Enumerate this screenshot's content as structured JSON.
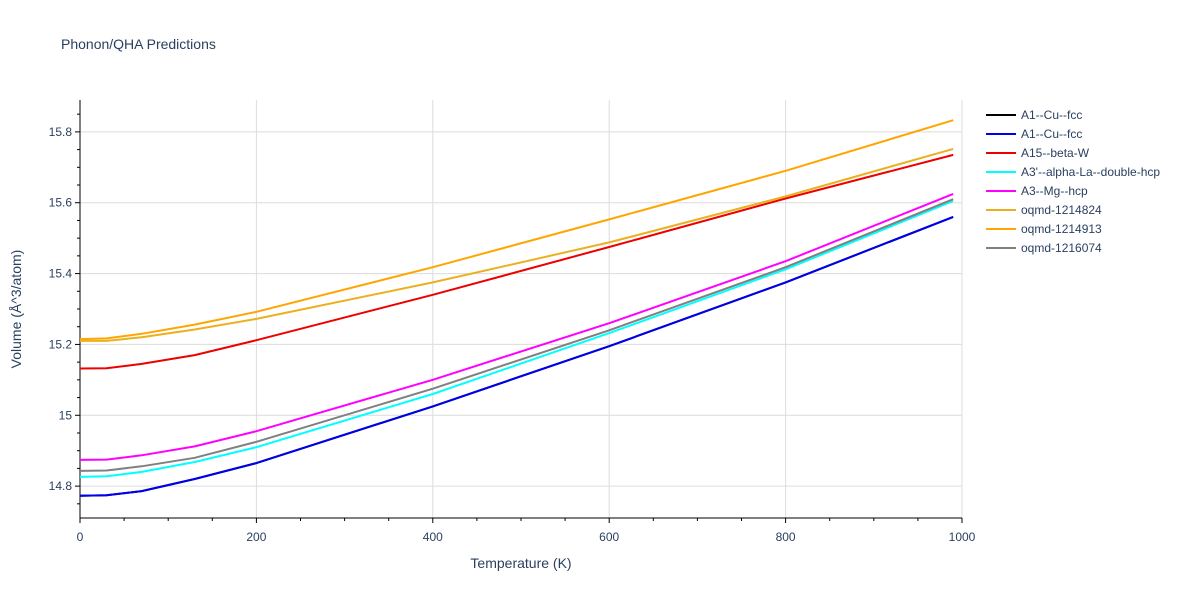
{
  "chart_data": {
    "type": "line",
    "title": "Phonon/QHA Predictions",
    "xlabel": "Temperature (K)",
    "ylabel": "Volume (Å^3/atom)",
    "xlim": [
      0,
      1000
    ],
    "ylim": [
      14.71,
      15.89
    ],
    "x_ticks": [
      0,
      200,
      400,
      600,
      800,
      1000
    ],
    "x_tick_labels": [
      "0",
      "200",
      "400",
      "600",
      "800",
      "1000"
    ],
    "y_ticks": [
      14.8,
      15.0,
      15.2,
      15.4,
      15.6,
      15.8
    ],
    "y_tick_labels": [
      "14.8",
      "15",
      "15.2",
      "15.4",
      "15.6",
      "15.8"
    ],
    "grid": true,
    "legend_position": "right",
    "x": [
      0,
      30,
      70,
      130,
      200,
      400,
      600,
      800,
      990
    ],
    "series": [
      {
        "name": "A1--Cu--fcc",
        "color": "#000000",
        "values": [
          14.773,
          14.774,
          14.786,
          14.82,
          14.865,
          15.025,
          15.195,
          15.375,
          15.56
        ]
      },
      {
        "name": "A1--Cu--fcc",
        "color": "#0000ee",
        "values": [
          14.773,
          14.774,
          14.786,
          14.82,
          14.865,
          15.025,
          15.195,
          15.375,
          15.56
        ]
      },
      {
        "name": "A15--beta-W",
        "color": "#ee0000",
        "values": [
          15.132,
          15.133,
          15.145,
          15.17,
          15.212,
          15.34,
          15.475,
          15.612,
          15.735
        ]
      },
      {
        "name": "A3'--alpha-La--double-hcp",
        "color": "#00ffff",
        "values": [
          14.826,
          14.828,
          14.84,
          14.868,
          14.91,
          15.06,
          15.232,
          15.412,
          15.605
        ]
      },
      {
        "name": "A3--Mg--hcp",
        "color": "#ff00ff",
        "values": [
          14.874,
          14.875,
          14.887,
          14.912,
          14.955,
          15.1,
          15.26,
          15.435,
          15.625
        ]
      },
      {
        "name": "oqmd-1214824",
        "color": "#ecb01f",
        "values": [
          15.21,
          15.21,
          15.22,
          15.242,
          15.272,
          15.375,
          15.488,
          15.618,
          15.752
        ]
      },
      {
        "name": "oqmd-1214913",
        "color": "#ffa500",
        "values": [
          15.215,
          15.217,
          15.23,
          15.256,
          15.292,
          15.418,
          15.553,
          15.69,
          15.833
        ]
      },
      {
        "name": "oqmd-1216074",
        "color": "#808080",
        "values": [
          14.843,
          14.844,
          14.856,
          14.88,
          14.925,
          15.075,
          15.24,
          15.418,
          15.61
        ]
      }
    ]
  }
}
